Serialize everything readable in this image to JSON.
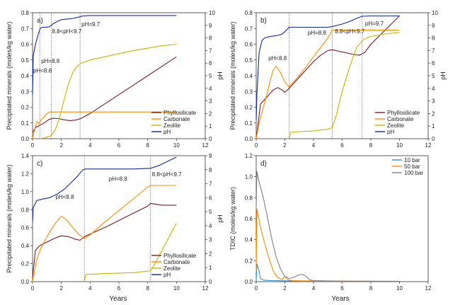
{
  "figure": {
    "xtitle_left": "Years",
    "xtitle_right": "Years"
  },
  "chart_data": [
    {
      "panel": "a)",
      "type": "line",
      "xlim": [
        0,
        12
      ],
      "ylim": [
        0,
        0.8
      ],
      "y2lim": [
        0,
        10
      ],
      "xticks": [
        0,
        2,
        4,
        6,
        8,
        10,
        12
      ],
      "yticks": [
        0,
        0.1,
        0.2,
        0.3,
        0.4,
        0.5,
        0.6,
        0.7,
        0.8
      ],
      "ytick_labels": [
        "0.0",
        "0.1",
        "0.2",
        "0.3",
        "0.4",
        "0.5",
        "0.6",
        "0.7",
        "0.8"
      ],
      "y2ticks": [
        0,
        1,
        2,
        3,
        4,
        5,
        6,
        7,
        8,
        9,
        10
      ],
      "xlabel": "",
      "ylabel": "Precipitated minerals (moles/kg water)",
      "y2label": "pH",
      "vlines": [
        0.5,
        1.3,
        3.3
      ],
      "annotations": [
        {
          "text": "pH<8.8",
          "x": 0.05,
          "y": 0.42
        },
        {
          "text": "pH=8.8",
          "x": 0.6,
          "y": 0.48
        },
        {
          "text": "8.8<pH<9.7",
          "x": 1.35,
          "y": 0.67
        },
        {
          "text": "pH=9.7",
          "x": 3.4,
          "y": 0.715
        }
      ],
      "legend": {
        "location": "lower-right",
        "entries": [
          "Phyllosilicate",
          "Carbonate",
          "Zeolite",
          "pH"
        ]
      },
      "series": [
        {
          "name": "Phyllosilicate",
          "color": "#7b1a24",
          "axis": "left",
          "x": [
            0,
            0.2,
            0.5,
            0.8,
            1.1,
            1.4,
            1.8,
            2.2,
            2.6,
            3.0,
            3.4,
            4,
            5,
            6,
            7,
            8,
            9,
            10
          ],
          "y": [
            0.04,
            0.07,
            0.085,
            0.1,
            0.12,
            0.13,
            0.128,
            0.12,
            0.115,
            0.118,
            0.13,
            0.16,
            0.22,
            0.28,
            0.34,
            0.4,
            0.46,
            0.52
          ]
        },
        {
          "name": "Carbonate",
          "color": "#ff8c00",
          "axis": "left",
          "x": [
            0,
            0.1,
            0.3,
            0.45,
            0.6,
            0.8,
            1.0,
            1.2,
            2,
            4,
            6,
            8,
            10
          ],
          "y": [
            0.0,
            0.04,
            0.11,
            0.095,
            0.12,
            0.14,
            0.16,
            0.17,
            0.17,
            0.17,
            0.17,
            0.17,
            0.17
          ]
        },
        {
          "name": "Zeolite",
          "color": "#c8b400",
          "axis": "left",
          "x": [
            0.5,
            0.8,
            1.0,
            1.3,
            1.6,
            1.9,
            2.2,
            2.5,
            2.8,
            3.1,
            3.4,
            4,
            5,
            6,
            7,
            8,
            9,
            10
          ],
          "y": [
            0.0,
            0.005,
            0.01,
            0.02,
            0.06,
            0.14,
            0.25,
            0.35,
            0.42,
            0.46,
            0.48,
            0.5,
            0.52,
            0.54,
            0.56,
            0.575,
            0.59,
            0.6
          ]
        },
        {
          "name": "pH",
          "color": "#1428a0",
          "axis": "right",
          "x": [
            0,
            0.05,
            0.2,
            0.4,
            0.55,
            0.7,
            1.0,
            1.2,
            1.4,
            1.7,
            2.0,
            2.4,
            2.8,
            3.2,
            3.5,
            4,
            6,
            8,
            10
          ],
          "y": [
            3.5,
            6.6,
            7.5,
            8.3,
            8.8,
            8.85,
            8.85,
            8.9,
            9.1,
            9.3,
            9.45,
            9.5,
            9.55,
            9.65,
            9.75,
            9.78,
            9.78,
            9.78,
            9.78
          ]
        }
      ]
    },
    {
      "panel": "b)",
      "type": "line",
      "xlim": [
        0,
        12
      ],
      "ylim": [
        0,
        0.8
      ],
      "y2lim": [
        0,
        10
      ],
      "xticks": [
        0,
        2,
        4,
        6,
        8,
        10,
        12
      ],
      "yticks": [
        0,
        0.1,
        0.2,
        0.3,
        0.4,
        0.5,
        0.6,
        0.7,
        0.8
      ],
      "ytick_labels": [
        "0.0",
        "0.1",
        "0.2",
        "0.3",
        "0.4",
        "0.5",
        "0.6",
        "0.7",
        "0.8"
      ],
      "y2ticks": [
        0,
        1,
        2,
        3,
        4,
        5,
        6,
        7,
        8,
        9,
        10
      ],
      "xlabel": "",
      "ylabel": "Precipitated minerals (moles/kg water)",
      "y2label": "pH",
      "vlines": [
        2.3,
        5.3,
        7.4
      ],
      "annotations": [
        {
          "text": "pH<8.8",
          "x": 0.85,
          "y": 0.5
        },
        {
          "text": "pH=8.8",
          "x": 3.6,
          "y": 0.66
        },
        {
          "text": "8.8<pH<9.7",
          "x": 5.5,
          "y": 0.67
        },
        {
          "text": "pH=9.7",
          "x": 7.6,
          "y": 0.72
        }
      ],
      "legend": {
        "location": "lower-right",
        "entries": [
          "Phyllosilicate",
          "Carbonate",
          "Zeolite",
          "pH"
        ]
      },
      "series": [
        {
          "name": "Phyllosilicate",
          "color": "#7b1a24",
          "axis": "left",
          "x": [
            0,
            0.3,
            0.6,
            0.9,
            1.2,
            1.5,
            1.8,
            2.0,
            2.3,
            2.6,
            3.0,
            3.5,
            4,
            4.5,
            5,
            5.3,
            5.8,
            6.3,
            6.8,
            7.2,
            7.6,
            8,
            9,
            10
          ],
          "y": [
            0.0,
            0.22,
            0.25,
            0.28,
            0.31,
            0.325,
            0.31,
            0.295,
            0.32,
            0.35,
            0.39,
            0.44,
            0.49,
            0.53,
            0.56,
            0.565,
            0.555,
            0.545,
            0.535,
            0.53,
            0.55,
            0.6,
            0.69,
            0.78
          ]
        },
        {
          "name": "Carbonate",
          "color": "#ff8c00",
          "axis": "left",
          "x": [
            0,
            0.2,
            0.5,
            0.8,
            1.0,
            1.2,
            1.4,
            1.7,
            2.0,
            2.3,
            2.6,
            3.0,
            3.5,
            4,
            4.5,
            5,
            5.3,
            6,
            7,
            8,
            9,
            10
          ],
          "y": [
            0.0,
            0.1,
            0.2,
            0.3,
            0.38,
            0.44,
            0.46,
            0.42,
            0.36,
            0.33,
            0.36,
            0.4,
            0.46,
            0.52,
            0.58,
            0.64,
            0.69,
            0.69,
            0.69,
            0.69,
            0.69,
            0.69
          ]
        },
        {
          "name": "Zeolite",
          "color": "#c8b400",
          "axis": "left",
          "x": [
            2.3,
            2.4,
            3,
            4,
            5,
            5.3,
            5.6,
            6,
            6.5,
            7,
            7.5,
            8,
            9,
            10
          ],
          "y": [
            0.0,
            0.04,
            0.045,
            0.05,
            0.06,
            0.07,
            0.15,
            0.3,
            0.45,
            0.58,
            0.63,
            0.65,
            0.665,
            0.675
          ]
        },
        {
          "name": "pH",
          "color": "#1428a0",
          "axis": "right",
          "x": [
            0,
            0.05,
            0.2,
            0.4,
            0.6,
            0.9,
            1.2,
            1.5,
            1.8,
            2.0,
            2.3,
            3,
            4,
            5,
            5.3,
            6,
            6.5,
            7,
            7.4,
            8,
            9,
            10
          ],
          "y": [
            1.5,
            3.5,
            6.8,
            7.8,
            8.0,
            8.1,
            8.15,
            8.2,
            8.3,
            8.5,
            8.85,
            8.85,
            8.85,
            8.85,
            8.9,
            9.1,
            9.3,
            9.55,
            9.72,
            9.75,
            9.75,
            9.75
          ]
        }
      ]
    },
    {
      "panel": "c)",
      "type": "line",
      "xlim": [
        0,
        12
      ],
      "ylim": [
        0,
        1.4
      ],
      "y2lim": [
        0,
        9
      ],
      "xticks": [
        0,
        2,
        4,
        6,
        8,
        10,
        12
      ],
      "yticks": [
        0,
        0.2,
        0.4,
        0.6,
        0.8,
        1.0,
        1.2,
        1.4
      ],
      "ytick_labels": [
        "0.0",
        "0.2",
        "0.4",
        "0.6",
        "0.8",
        "1.0",
        "1.2",
        "1.4"
      ],
      "y2ticks": [
        0,
        1,
        2,
        3,
        4,
        5,
        6,
        7,
        8,
        9
      ],
      "xlabel": "Years",
      "ylabel": "Precipitated minerals (moles/kg water)",
      "y2label": "pH",
      "vlines": [
        3.6,
        8.2
      ],
      "annotations": [
        {
          "text": "pH<8.8",
          "x": 1.6,
          "y": 0.92
        },
        {
          "text": "pH=8.8",
          "x": 5.3,
          "y": 1.12
        },
        {
          "text": "8.8<pH<9.7",
          "x": 8.3,
          "y": 1.17
        }
      ],
      "legend": {
        "location": "lower-right",
        "entries": [
          "Phyllosilicate",
          "Carbonate",
          "Zeolite",
          "pH"
        ]
      },
      "series": [
        {
          "name": "Phyllosilicate",
          "color": "#7b1a24",
          "axis": "left",
          "x": [
            0,
            0.2,
            0.5,
            1.0,
            1.5,
            2.0,
            2.5,
            3.0,
            3.3,
            3.6,
            4,
            5,
            6,
            7,
            8,
            8.2,
            9,
            10
          ],
          "y": [
            0.05,
            0.35,
            0.4,
            0.44,
            0.48,
            0.51,
            0.5,
            0.47,
            0.46,
            0.5,
            0.53,
            0.6,
            0.68,
            0.76,
            0.84,
            0.87,
            0.85,
            0.85
          ]
        },
        {
          "name": "Carbonate",
          "color": "#ff8c00",
          "axis": "left",
          "x": [
            0,
            0.3,
            0.6,
            1.0,
            1.5,
            2.0,
            2.4,
            2.8,
            3.2,
            3.6,
            4,
            5,
            6,
            7,
            8,
            8.2,
            9,
            10
          ],
          "y": [
            0.0,
            0.25,
            0.38,
            0.5,
            0.63,
            0.73,
            0.68,
            0.6,
            0.53,
            0.48,
            0.52,
            0.66,
            0.79,
            0.92,
            1.05,
            1.07,
            1.07,
            1.07
          ]
        },
        {
          "name": "Zeolite",
          "color": "#c8b400",
          "axis": "left",
          "x": [
            3.6,
            3.7,
            5,
            7,
            8.2,
            8.5,
            9,
            9.5,
            10
          ],
          "y": [
            0.0,
            0.08,
            0.09,
            0.1,
            0.12,
            0.2,
            0.35,
            0.5,
            0.65
          ]
        },
        {
          "name": "pH",
          "color": "#1428a0",
          "axis": "right",
          "x": [
            0,
            0.05,
            0.3,
            0.7,
            1.2,
            1.7,
            2.2,
            2.7,
            3.1,
            3.5,
            3.7,
            5,
            7,
            8.2,
            8.8,
            9.4,
            10
          ],
          "y": [
            4.3,
            5.3,
            5.8,
            5.9,
            6.0,
            6.25,
            6.6,
            7.1,
            7.5,
            8.0,
            8.05,
            8.05,
            8.05,
            8.1,
            8.3,
            8.6,
            8.9
          ]
        }
      ]
    },
    {
      "panel": "d)",
      "type": "line",
      "xlim": [
        0,
        12
      ],
      "ylim": [
        0,
        1.2
      ],
      "xticks": [
        0,
        2,
        4,
        6,
        8,
        10,
        12
      ],
      "yticks": [
        0,
        0.2,
        0.4,
        0.6,
        0.8,
        1.0,
        1.2
      ],
      "ytick_labels": [
        "0.0",
        "0.2",
        "0.4",
        "0.6",
        "0.8",
        "1.0",
        "1.2"
      ],
      "xlabel": "Years",
      "ylabel": "TDIC (moles/kg water)",
      "legend": {
        "location": "top-right",
        "entries": [
          "10 bar",
          "50 bar",
          "100 bar"
        ]
      },
      "series": [
        {
          "name": "10 bar",
          "color": "#2a8fe0",
          "x": [
            0,
            0.05,
            0.2,
            0.3,
            0.5,
            1,
            2,
            3,
            6
          ],
          "y": [
            0.01,
            0.17,
            0.1,
            0.03,
            0.015,
            0.01,
            0.008,
            0.005,
            0.004
          ]
        },
        {
          "name": "50 bar",
          "color": "#ff8c00",
          "x": [
            0,
            0.05,
            0.3,
            0.6,
            0.9,
            1.2,
            1.5,
            1.8,
            2.0,
            2.2,
            2.5,
            3,
            5,
            8
          ],
          "y": [
            0.1,
            0.69,
            0.52,
            0.36,
            0.22,
            0.1,
            0.04,
            0.02,
            0.05,
            0.02,
            0.01,
            0.008,
            0.006,
            0.005
          ]
        },
        {
          "name": "100 bar",
          "color": "#808080",
          "x": [
            0,
            0.05,
            0.2,
            0.5,
            0.8,
            1.1,
            1.4,
            1.7,
            2.0,
            2.3,
            2.6,
            2.9,
            3.2,
            3.5,
            3.7,
            4,
            6,
            10
          ],
          "y": [
            0.7,
            1.05,
            0.95,
            0.8,
            0.6,
            0.4,
            0.23,
            0.12,
            0.05,
            0.03,
            0.04,
            0.06,
            0.07,
            0.05,
            0.02,
            0.01,
            0.005,
            0.004
          ]
        }
      ]
    }
  ]
}
